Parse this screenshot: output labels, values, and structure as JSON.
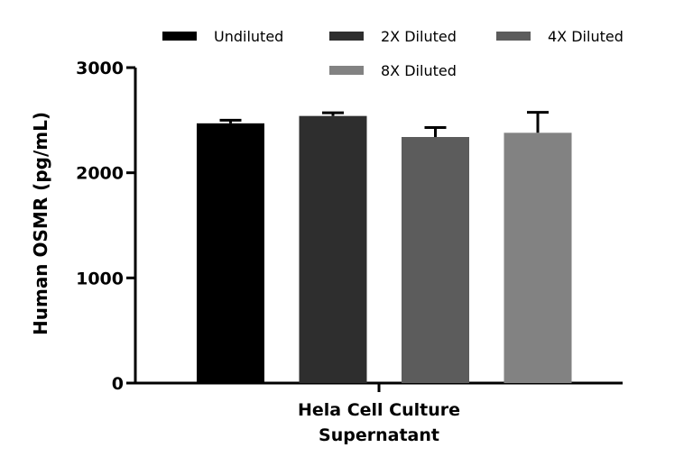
{
  "chart_data": {
    "type": "bar",
    "categories": [
      "Hela Cell Culture Supernatant"
    ],
    "category_lines": [
      "Hela Cell Culture",
      "Supernatant"
    ],
    "series": [
      {
        "name": "Undiluted",
        "values": [
          2470
        ],
        "error": [
          30
        ],
        "color": "#000000"
      },
      {
        "name": "2X Diluted",
        "values": [
          2540
        ],
        "error": [
          30
        ],
        "color": "#2e2e2e"
      },
      {
        "name": "4X Diluted",
        "values": [
          2340
        ],
        "error": [
          90
        ],
        "color": "#5c5c5c"
      },
      {
        "name": "8X Diluted",
        "values": [
          2380
        ],
        "error": [
          195
        ],
        "color": "#828282"
      }
    ],
    "title": "",
    "xlabel": "",
    "ylabel": "Human OSMR (pg/mL)",
    "ylim": [
      0,
      3000
    ],
    "yticks": [
      0,
      1000,
      2000,
      3000
    ],
    "ytick_labels": [
      "0",
      "1000",
      "2000",
      "3000"
    ],
    "grid": false,
    "legend_position": "top"
  }
}
